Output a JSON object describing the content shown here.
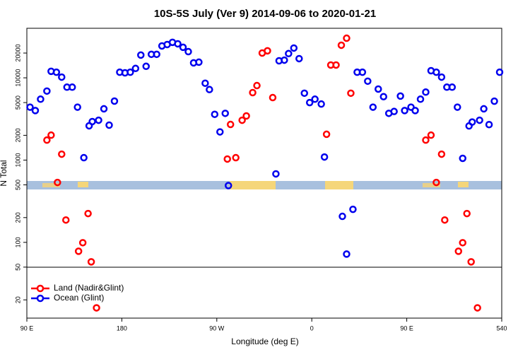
{
  "chart_data": {
    "type": "scatter",
    "title": "10S-5S July (Ver 9)   2014-09-06 to 2020-01-21",
    "xlabel": "Longitude (deg E)",
    "ylabel": "N Total",
    "xlim": [
      90,
      540
    ],
    "ylim": [
      12,
      40000
    ],
    "ylog": true,
    "xticks": [
      {
        "value": 90,
        "label": "90 E"
      },
      180,
      {
        "value": 270,
        "label": "90 W"
      },
      {
        "value": 360,
        "label": "0"
      },
      {
        "value": 450,
        "label": "90 E"
      },
      540
    ],
    "yticks": [
      20,
      50,
      100,
      200,
      500,
      1000,
      2000,
      5000,
      10000,
      20000
    ],
    "legend": "bottom-left",
    "series": [
      {
        "name": "Land (Nadir&Glint)",
        "color": "#ff0000",
        "x": [
          109,
          113,
          119,
          123,
          127,
          139,
          143,
          148,
          151,
          156,
          280,
          283,
          288,
          294,
          298,
          304,
          308,
          313,
          318,
          323,
          374,
          378,
          383,
          388,
          393,
          397,
          468,
          473,
          478,
          483,
          486,
          499,
          503,
          507,
          511,
          517
        ],
        "values": [
          1750,
          2010,
          535,
          1180,
          187,
          78,
          99,
          224,
          58,
          16,
          1030,
          2710,
          1070,
          3050,
          3440,
          6610,
          8050,
          20000,
          21300,
          5750,
          2060,
          14300,
          14300,
          24900,
          30300,
          6500,
          1750,
          2010,
          535,
          1180,
          187,
          78,
          99,
          224,
          58,
          16
        ]
      },
      {
        "name": "Ocean (Glint)",
        "color": "#0000ee",
        "x": [
          93,
          98,
          103,
          109,
          113,
          118,
          123,
          128,
          133,
          138,
          144,
          149,
          152,
          158,
          163,
          168,
          173,
          178,
          183,
          188,
          193,
          198,
          203,
          208,
          213,
          218,
          223,
          228,
          233,
          238,
          243,
          248,
          253,
          259,
          263,
          268,
          273,
          278,
          281,
          326,
          329,
          334,
          338,
          343,
          348,
          353,
          358,
          363,
          369,
          372,
          389,
          393,
          399,
          403,
          408,
          413,
          418,
          423,
          428,
          433,
          438,
          444,
          448,
          454,
          458,
          463,
          468,
          473,
          478,
          483,
          488,
          493,
          498,
          503,
          509,
          512,
          519,
          523,
          528,
          533,
          538
        ],
        "values": [
          4400,
          4000,
          5500,
          6900,
          12000,
          11700,
          10200,
          7700,
          7700,
          4400,
          1070,
          2610,
          2940,
          3050,
          4200,
          2660,
          5210,
          11700,
          11500,
          11700,
          13000,
          18900,
          13800,
          19300,
          19300,
          24400,
          25400,
          27000,
          25900,
          23500,
          20800,
          15200,
          15500,
          8600,
          7200,
          3600,
          2200,
          3700,
          490,
          680,
          16100,
          16400,
          19700,
          23000,
          17100,
          6500,
          5000,
          5500,
          4800,
          1090,
          207,
          72,
          252,
          11700,
          11700,
          9100,
          4400,
          7300,
          5900,
          3700,
          3900,
          6000,
          4000,
          4400,
          4000,
          5500,
          6700,
          12200,
          11700,
          10200,
          7700,
          7700,
          4400,
          1050,
          2600,
          2900,
          3050,
          4200,
          2700,
          5200,
          11700
        ]
      }
    ]
  }
}
